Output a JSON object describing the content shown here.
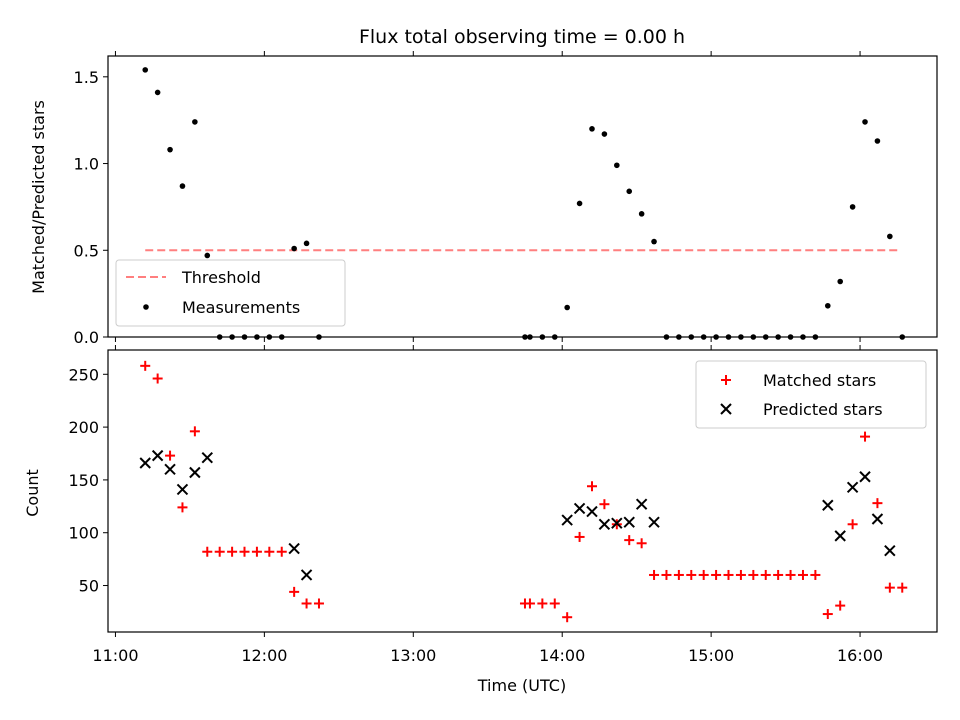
{
  "title": "Flux total observing time = 0.00 h",
  "chart_data": [
    {
      "type": "scatter",
      "ylabel": "Matched/Predicted stars",
      "xlim": [
        "10:57",
        "16:31"
      ],
      "ylim": [
        0,
        1.62
      ],
      "yticks": [
        0,
        0.5,
        1.0,
        1.5
      ],
      "ytick_labels": [
        "0.0",
        "0.5",
        "1.0",
        "1.5"
      ],
      "grid": false,
      "legend_position": "lower-left",
      "threshold": {
        "name": "Threshold",
        "y": 0.5,
        "x": [
          "11:12",
          "16:16"
        ],
        "color": "#ff7f7f",
        "style": "dashed"
      },
      "series": [
        {
          "name": "Measurements",
          "marker": "dot",
          "color": "#000000",
          "points": [
            [
              "11:12",
              1.54
            ],
            [
              "11:17",
              1.41
            ],
            [
              "11:22",
              1.08
            ],
            [
              "11:27",
              0.87
            ],
            [
              "11:32",
              1.24
            ],
            [
              "11:37",
              0.47
            ],
            [
              "11:42",
              0.0
            ],
            [
              "11:47",
              0.0
            ],
            [
              "11:52",
              0.0
            ],
            [
              "11:57",
              0.0
            ],
            [
              "12:02",
              0.0
            ],
            [
              "12:07",
              0.0
            ],
            [
              "12:12",
              0.51
            ],
            [
              "12:17",
              0.54
            ],
            [
              "12:22",
              0.0
            ],
            [
              "13:45",
              0.0
            ],
            [
              "13:47",
              0.0
            ],
            [
              "13:52",
              0.0
            ],
            [
              "13:57",
              0.0
            ],
            [
              "14:02",
              0.17
            ],
            [
              "14:07",
              0.77
            ],
            [
              "14:12",
              1.2
            ],
            [
              "14:17",
              1.17
            ],
            [
              "14:22",
              0.99
            ],
            [
              "14:27",
              0.84
            ],
            [
              "14:32",
              0.71
            ],
            [
              "14:37",
              0.55
            ],
            [
              "14:42",
              0.0
            ],
            [
              "14:47",
              0.0
            ],
            [
              "14:52",
              0.0
            ],
            [
              "14:57",
              0.0
            ],
            [
              "15:02",
              0.0
            ],
            [
              "15:07",
              0.0
            ],
            [
              "15:12",
              0.0
            ],
            [
              "15:17",
              0.0
            ],
            [
              "15:22",
              0.0
            ],
            [
              "15:27",
              0.0
            ],
            [
              "15:32",
              0.0
            ],
            [
              "15:37",
              0.0
            ],
            [
              "15:42",
              0.0
            ],
            [
              "15:47",
              0.18
            ],
            [
              "15:52",
              0.32
            ],
            [
              "15:57",
              0.75
            ],
            [
              "16:02",
              1.24
            ],
            [
              "16:07",
              1.13
            ],
            [
              "16:12",
              0.58
            ],
            [
              "16:17",
              0.0
            ]
          ]
        }
      ]
    },
    {
      "type": "scatter",
      "xlabel": "Time (UTC)",
      "ylabel": "Count",
      "xlim": [
        "10:57",
        "16:31"
      ],
      "ylim": [
        6,
        273
      ],
      "xticks": [
        "11:00",
        "12:00",
        "13:00",
        "14:00",
        "15:00",
        "16:00"
      ],
      "yticks": [
        50,
        100,
        150,
        200,
        250
      ],
      "grid": false,
      "legend_position": "upper-right",
      "series": [
        {
          "name": "Matched stars",
          "marker": "plus",
          "color": "#ff0000",
          "points": [
            [
              "11:12",
              258
            ],
            [
              "11:17",
              246
            ],
            [
              "11:22",
              173
            ],
            [
              "11:27",
              124
            ],
            [
              "11:32",
              196
            ],
            [
              "11:37",
              82
            ],
            [
              "11:42",
              82
            ],
            [
              "11:47",
              82
            ],
            [
              "11:52",
              82
            ],
            [
              "11:57",
              82
            ],
            [
              "12:02",
              82
            ],
            [
              "12:07",
              82
            ],
            [
              "12:12",
              44
            ],
            [
              "12:17",
              33
            ],
            [
              "12:22",
              33
            ],
            [
              "13:45",
              33
            ],
            [
              "13:47",
              33
            ],
            [
              "13:52",
              33
            ],
            [
              "13:57",
              33
            ],
            [
              "14:02",
              20
            ],
            [
              "14:07",
              96
            ],
            [
              "14:12",
              144
            ],
            [
              "14:17",
              127
            ],
            [
              "14:22",
              108
            ],
            [
              "14:27",
              93
            ],
            [
              "14:32",
              90
            ],
            [
              "14:37",
              60
            ],
            [
              "14:42",
              60
            ],
            [
              "14:47",
              60
            ],
            [
              "14:52",
              60
            ],
            [
              "14:57",
              60
            ],
            [
              "15:02",
              60
            ],
            [
              "15:07",
              60
            ],
            [
              "15:12",
              60
            ],
            [
              "15:17",
              60
            ],
            [
              "15:22",
              60
            ],
            [
              "15:27",
              60
            ],
            [
              "15:32",
              60
            ],
            [
              "15:37",
              60
            ],
            [
              "15:42",
              60
            ],
            [
              "15:47",
              23
            ],
            [
              "15:52",
              31
            ],
            [
              "15:57",
              108
            ],
            [
              "16:02",
              191
            ],
            [
              "16:07",
              128
            ],
            [
              "16:12",
              48
            ],
            [
              "16:17",
              48
            ]
          ]
        },
        {
          "name": "Predicted stars",
          "marker": "x",
          "color": "#000000",
          "points": [
            [
              "11:12",
              166
            ],
            [
              "11:17",
              173
            ],
            [
              "11:22",
              160
            ],
            [
              "11:27",
              141
            ],
            [
              "11:32",
              157
            ],
            [
              "11:37",
              171
            ],
            [
              "12:12",
              85
            ],
            [
              "12:17",
              60
            ],
            [
              "14:02",
              112
            ],
            [
              "14:07",
              123
            ],
            [
              "14:12",
              120
            ],
            [
              "14:17",
              108
            ],
            [
              "14:22",
              109
            ],
            [
              "14:27",
              110
            ],
            [
              "14:32",
              127
            ],
            [
              "14:37",
              110
            ],
            [
              "15:47",
              126
            ],
            [
              "15:52",
              97
            ],
            [
              "15:57",
              143
            ],
            [
              "16:02",
              153
            ],
            [
              "16:07",
              113
            ],
            [
              "16:12",
              83
            ]
          ]
        }
      ]
    }
  ]
}
